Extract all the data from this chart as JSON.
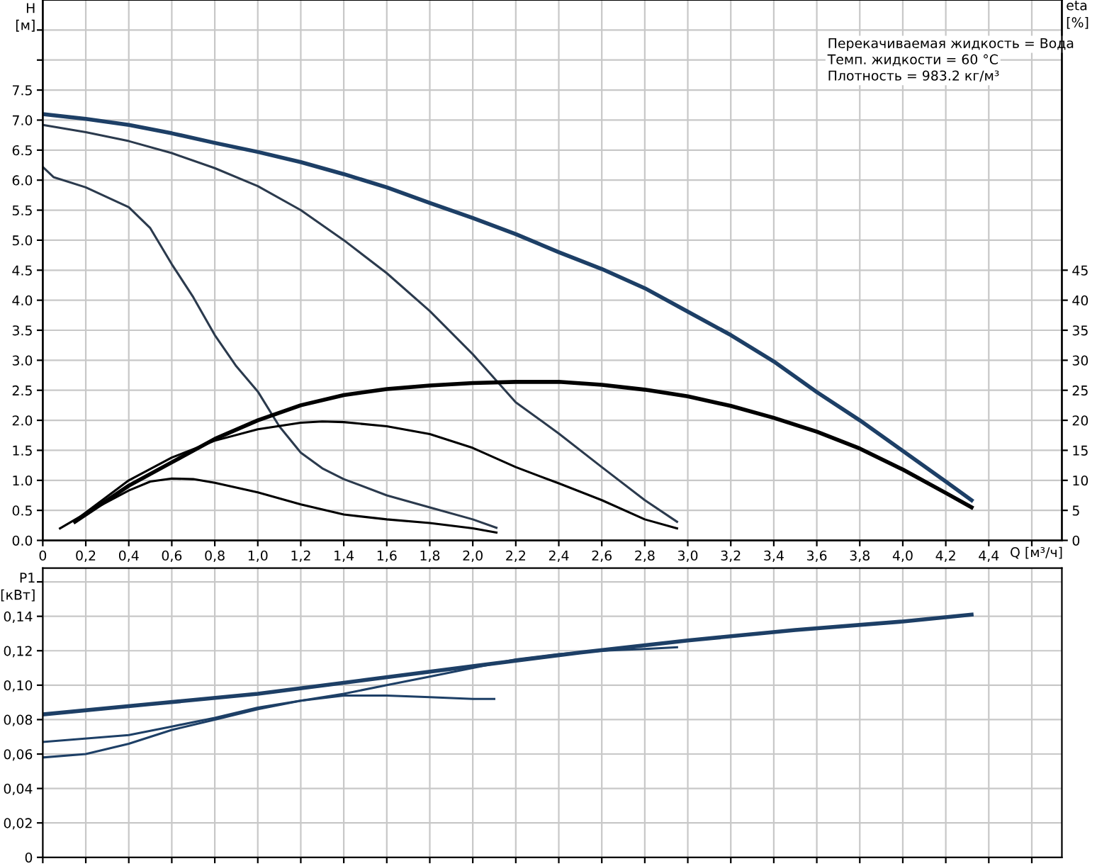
{
  "chart_data": [
    {
      "type": "line",
      "xlabel": "Q [м³/ч]",
      "ylabel": "H\n[м]",
      "y2label": "eta\n[%]",
      "annotations": [
        "Перекачиваемая жидкость = Вода",
        "Темп. жидкости = 60 °C",
        "Плотность = 983.2 кг/м³"
      ],
      "xlim": [
        0,
        4.74
      ],
      "ylim": [
        0,
        9.0
      ],
      "y2lim": [
        0,
        90
      ],
      "xticks": [
        0,
        {
          "value": 0.2,
          "label": "0,2"
        },
        {
          "value": 0.4,
          "label": "0,4"
        },
        {
          "value": 0.6,
          "label": "0,6"
        },
        {
          "value": 0.8,
          "label": "0,8"
        },
        {
          "value": 1.0,
          "label": "1,0"
        },
        {
          "value": 1.2,
          "label": "1,2"
        },
        {
          "value": 1.4,
          "label": "1,4"
        },
        {
          "value": 1.6,
          "label": "1,6"
        },
        {
          "value": 1.8,
          "label": "1,8"
        },
        {
          "value": 2.0,
          "label": "2,0"
        },
        {
          "value": 2.2,
          "label": "2,2"
        },
        {
          "value": 2.4,
          "label": "2,4"
        },
        {
          "value": 2.6,
          "label": "2,6"
        },
        {
          "value": 2.8,
          "label": "2,8"
        },
        {
          "value": 3.0,
          "label": "3,0"
        },
        {
          "value": 3.2,
          "label": "3,2"
        },
        {
          "value": 3.4,
          "label": "3,4"
        },
        {
          "value": 3.6,
          "label": "3,6"
        },
        {
          "value": 3.8,
          "label": "3,8"
        },
        {
          "value": 4.0,
          "label": "4,0"
        },
        {
          "value": 4.2,
          "label": "4,2"
        },
        {
          "value": 4.4,
          "label": "4,4"
        },
        {
          "value": 4.6,
          "label": null
        }
      ],
      "yticks": [
        {
          "value": 0,
          "label": "0.0"
        },
        0.5,
        {
          "value": 1,
          "label": "1.0"
        },
        1.5,
        {
          "value": 2,
          "label": "2.0"
        },
        2.5,
        {
          "value": 3,
          "label": "3.0"
        },
        3.5,
        {
          "value": 4,
          "label": "4.0"
        },
        4.5,
        {
          "value": 5,
          "label": "5.0"
        },
        5.5,
        {
          "value": 6,
          "label": "6.0"
        },
        6.5,
        {
          "value": 7,
          "label": "7.0"
        },
        7.5,
        {
          "value": 8,
          "label": null
        },
        {
          "value": 8.5,
          "label": null
        }
      ],
      "y2ticks": [
        0,
        5,
        10,
        15,
        20,
        25,
        30,
        35,
        40,
        45
      ],
      "grid": true,
      "legend": false,
      "series": [
        {
          "color": "#1d3f66",
          "x": [
            0,
            0.2,
            0.4,
            0.6,
            0.8,
            1.0,
            1.2,
            1.4,
            1.6,
            1.8,
            2.0,
            2.2,
            2.4,
            2.6,
            2.8,
            3.0,
            3.2,
            3.4,
            3.6,
            3.8,
            4.0,
            4.2,
            4.32
          ],
          "values": [
            7.1,
            7.02,
            6.92,
            6.78,
            6.62,
            6.47,
            6.3,
            6.1,
            5.88,
            5.62,
            5.37,
            5.1,
            4.8,
            4.52,
            4.2,
            3.81,
            3.42,
            2.98,
            2.47,
            2.0,
            1.49,
            0.98,
            0.67
          ]
        },
        {
          "color": "#2b3a4d",
          "x": [
            0,
            0.2,
            0.4,
            0.6,
            0.8,
            1.0,
            1.2,
            1.4,
            1.6,
            1.8,
            2.0,
            2.2,
            2.4,
            2.6,
            2.8,
            2.95
          ],
          "values": [
            6.92,
            6.8,
            6.65,
            6.45,
            6.2,
            5.9,
            5.5,
            5.0,
            4.45,
            3.82,
            3.1,
            2.3,
            1.78,
            1.22,
            0.67,
            0.31
          ]
        },
        {
          "color": "#2b3a4d",
          "x": [
            0,
            0.05,
            0.2,
            0.4,
            0.5,
            0.6,
            0.7,
            0.8,
            0.9,
            1.0,
            1.1,
            1.2,
            1.3,
            1.4,
            1.6,
            1.8,
            2.0,
            2.11
          ],
          "values": [
            6.22,
            6.05,
            5.88,
            5.55,
            5.2,
            4.6,
            4.05,
            3.42,
            2.9,
            2.48,
            1.9,
            1.46,
            1.2,
            1.02,
            0.75,
            0.55,
            0.35,
            0.21
          ]
        },
        {
          "color": "#000000",
          "axis": "y2",
          "x": [
            0.15,
            0.4,
            0.6,
            0.8,
            1.0,
            1.2,
            1.4,
            1.6,
            1.8,
            2.0,
            2.2,
            2.4,
            2.6,
            2.8,
            3.0,
            3.2,
            3.4,
            3.6,
            3.8,
            4.0,
            4.2,
            4.32
          ],
          "values": [
            3.1,
            9.1,
            13.0,
            16.9,
            20.0,
            22.5,
            24.2,
            25.2,
            25.8,
            26.2,
            26.4,
            26.4,
            25.9,
            25.1,
            24.0,
            22.4,
            20.4,
            18.1,
            15.3,
            11.8,
            7.9,
            5.5
          ]
        },
        {
          "color": "#000000",
          "axis": "y2",
          "x": [
            0.15,
            0.4,
            0.6,
            0.8,
            1.0,
            1.2,
            1.3,
            1.4,
            1.6,
            1.8,
            2.0,
            2.2,
            2.4,
            2.6,
            2.8,
            2.95
          ],
          "values": [
            3.3,
            10.0,
            13.8,
            16.6,
            18.5,
            19.6,
            19.8,
            19.7,
            19.0,
            17.7,
            15.4,
            12.2,
            9.5,
            6.7,
            3.5,
            2.0
          ]
        },
        {
          "color": "#000000",
          "axis": "y2",
          "x": [
            0.08,
            0.2,
            0.4,
            0.5,
            0.6,
            0.7,
            0.8,
            1.0,
            1.2,
            1.4,
            1.6,
            1.8,
            2.0,
            2.11
          ],
          "values": [
            2.0,
            4.5,
            8.3,
            9.8,
            10.3,
            10.2,
            9.6,
            8.0,
            6.0,
            4.3,
            3.5,
            2.9,
            2.0,
            1.3
          ]
        }
      ]
    },
    {
      "type": "line",
      "ylabel": "P1\n[кВт]",
      "xlim": [
        0,
        4.74
      ],
      "ylim": [
        0,
        0.168
      ],
      "xticks": [
        0,
        0.2,
        0.4,
        0.6,
        0.8,
        1.0,
        1.2,
        1.4,
        1.6,
        1.8,
        2.0,
        2.2,
        2.4,
        2.6,
        2.8,
        3.0,
        3.2,
        3.4,
        3.6,
        3.8,
        4.0,
        4.2,
        4.4,
        4.6
      ],
      "yticks": [
        0,
        {
          "value": 0.02,
          "label": "0,02"
        },
        {
          "value": 0.04,
          "label": "0,04"
        },
        {
          "value": 0.06,
          "label": "0,06"
        },
        {
          "value": 0.08,
          "label": "0,08"
        },
        {
          "value": 0.1,
          "label": "0,10"
        },
        {
          "value": 0.12,
          "label": "0,12"
        },
        {
          "value": 0.14,
          "label": "0,14"
        },
        {
          "value": 0.16,
          "label": null
        }
      ],
      "tick_labels": "y",
      "grid": true,
      "legend": false,
      "series": [
        {
          "color": "#1d3f66",
          "x": [
            0,
            0.5,
            1.0,
            1.5,
            2.0,
            2.5,
            3.0,
            3.5,
            4.0,
            4.32
          ],
          "values": [
            0.083,
            0.089,
            0.095,
            0.103,
            0.111,
            0.119,
            0.126,
            0.132,
            0.137,
            0.141
          ]
        },
        {
          "color": "#1d3f66",
          "x": [
            0,
            0.4,
            0.6,
            0.8,
            1.0,
            1.2,
            1.4,
            1.6,
            1.8,
            2.0,
            2.2,
            2.4,
            2.6,
            2.8,
            2.95
          ],
          "values": [
            0.067,
            0.071,
            0.076,
            0.081,
            0.087,
            0.091,
            0.095,
            0.1,
            0.105,
            0.11,
            0.115,
            0.118,
            0.12,
            0.121,
            0.122
          ]
        },
        {
          "color": "#1d3f66",
          "x": [
            0,
            0.2,
            0.4,
            0.6,
            0.8,
            1.0,
            1.2,
            1.4,
            1.6,
            1.8,
            2.0,
            2.1
          ],
          "values": [
            0.058,
            0.06,
            0.066,
            0.074,
            0.08,
            0.086,
            0.091,
            0.094,
            0.094,
            0.093,
            0.092,
            0.092
          ]
        }
      ]
    }
  ]
}
